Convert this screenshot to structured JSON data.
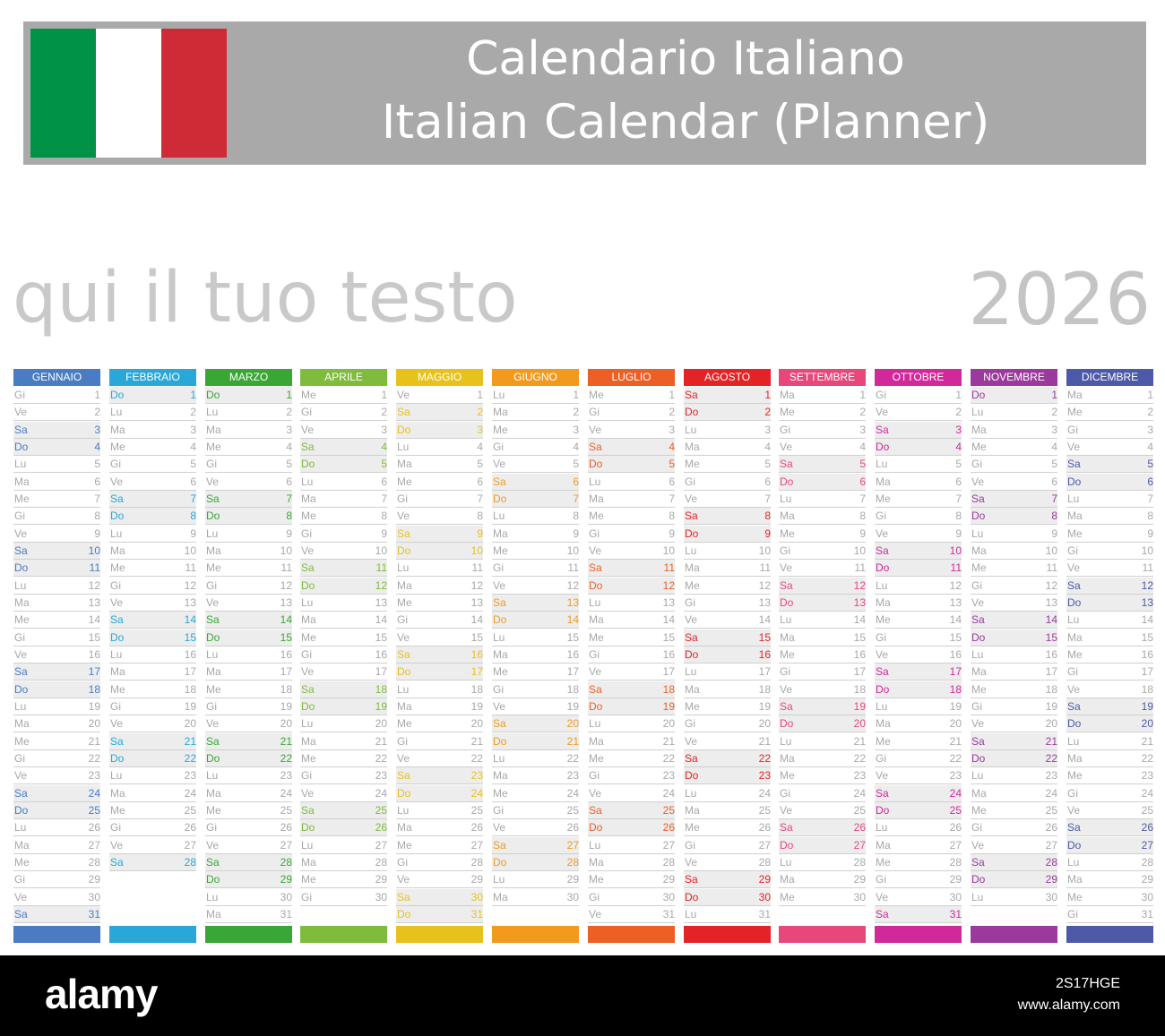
{
  "header": {
    "title_it": "Calendario Italiano",
    "title_en": "Italian Calendar (Planner)",
    "flag_colors": [
      "#009246",
      "#ffffff",
      "#ce2b37"
    ]
  },
  "subtitle": "qui il tuo testo",
  "year": "2026",
  "months": [
    {
      "name": "GENNAIO",
      "color": "#4a7cc3",
      "start": 3,
      "days": 31
    },
    {
      "name": "FEBBRAIO",
      "color": "#28a7d8",
      "start": 6,
      "days": 28
    },
    {
      "name": "MARZO",
      "color": "#3aa635",
      "start": 6,
      "days": 31
    },
    {
      "name": "APRILE",
      "color": "#7fbb3d",
      "start": 2,
      "days": 30
    },
    {
      "name": "MAGGIO",
      "color": "#e8c21c",
      "start": 4,
      "days": 31
    },
    {
      "name": "GIUGNO",
      "color": "#f29a1e",
      "start": 0,
      "days": 30
    },
    {
      "name": "LUGLIO",
      "color": "#ec5f25",
      "start": 2,
      "days": 31
    },
    {
      "name": "AGOSTO",
      "color": "#e42326",
      "start": 5,
      "days": 31
    },
    {
      "name": "SETTEMBRE",
      "color": "#e8477b",
      "start": 1,
      "days": 30
    },
    {
      "name": "OTTOBRE",
      "color": "#d1299a",
      "start": 3,
      "days": 31
    },
    {
      "name": "NOVEMBRE",
      "color": "#9b3a9c",
      "start": 6,
      "days": 30
    },
    {
      "name": "DICEMBRE",
      "color": "#4d5aa8",
      "start": 1,
      "days": 31
    }
  ],
  "weekdays": [
    "Lu",
    "Ma",
    "Me",
    "Gi",
    "Ve",
    "Sa",
    "Do"
  ],
  "footer": {
    "logo": "alamy",
    "stock_id": "2S17HGE",
    "site": "www.alamy.com"
  }
}
